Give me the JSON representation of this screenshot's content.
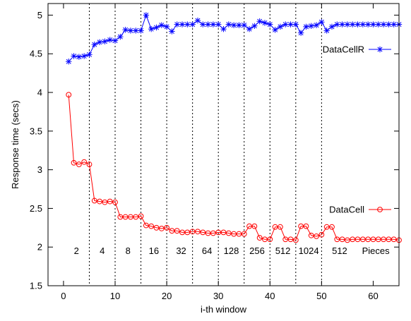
{
  "chart_data": {
    "type": "line",
    "title": "",
    "xlabel": "i-th window",
    "ylabel": "Response time (secs)",
    "xlim": [
      -3,
      65
    ],
    "ylim": [
      1.5,
      5.15
    ],
    "xticks": [
      0,
      10,
      20,
      30,
      40,
      50,
      60
    ],
    "yticks": [
      1.5,
      2,
      2.5,
      3,
      3.5,
      4,
      4.5,
      5
    ],
    "ytick_labels": [
      "1.5",
      "2",
      "2.5",
      "3",
      "3.5",
      "4",
      "4.5",
      "5"
    ],
    "grid": false,
    "legend": "right",
    "dividers_x": [
      5,
      10,
      15,
      20,
      25,
      30,
      35,
      40,
      45,
      50
    ],
    "annotations": [
      {
        "text": "2",
        "x": 2.5,
        "y": 1.95
      },
      {
        "text": "4",
        "x": 7.5,
        "y": 1.95
      },
      {
        "text": "8",
        "x": 12.5,
        "y": 1.95
      },
      {
        "text": "16",
        "x": 17.5,
        "y": 1.95
      },
      {
        "text": "32",
        "x": 22.8,
        "y": 1.95
      },
      {
        "text": "64",
        "x": 27.8,
        "y": 1.95
      },
      {
        "text": "128",
        "x": 32.5,
        "y": 1.95
      },
      {
        "text": "256",
        "x": 37.5,
        "y": 1.95
      },
      {
        "text": "512",
        "x": 42.5,
        "y": 1.95
      },
      {
        "text": "1024",
        "x": 47.5,
        "y": 1.95
      },
      {
        "text": "512",
        "x": 53.5,
        "y": 1.95
      },
      {
        "text": "Pieces",
        "x": 60.5,
        "y": 1.95
      }
    ],
    "series": [
      {
        "name": "DataCellR",
        "color": "#0000ff",
        "marker": "star",
        "x": [
          1,
          2,
          3,
          4,
          5,
          6,
          7,
          8,
          9,
          10,
          11,
          12,
          13,
          14,
          15,
          16,
          17,
          18,
          19,
          20,
          21,
          22,
          23,
          24,
          25,
          26,
          27,
          28,
          29,
          30,
          31,
          32,
          33,
          34,
          35,
          36,
          37,
          38,
          39,
          40,
          41,
          42,
          43,
          44,
          45,
          46,
          47,
          48,
          49,
          50,
          51,
          52,
          53,
          54,
          55,
          56,
          57,
          58,
          59,
          60,
          61,
          62,
          63,
          64,
          65
        ],
        "values": [
          4.4,
          4.47,
          4.46,
          4.47,
          4.49,
          4.62,
          4.65,
          4.66,
          4.68,
          4.67,
          4.72,
          4.81,
          4.8,
          4.8,
          4.8,
          5.0,
          4.82,
          4.84,
          4.87,
          4.85,
          4.79,
          4.88,
          4.88,
          4.88,
          4.88,
          4.93,
          4.88,
          4.88,
          4.88,
          4.88,
          4.82,
          4.88,
          4.87,
          4.87,
          4.87,
          4.82,
          4.86,
          4.92,
          4.9,
          4.88,
          4.81,
          4.85,
          4.88,
          4.88,
          4.88,
          4.77,
          4.85,
          4.86,
          4.87,
          4.91,
          4.8,
          4.85,
          4.88,
          4.88,
          4.88,
          4.88,
          4.88,
          4.88,
          4.88,
          4.88,
          4.88,
          4.88,
          4.88,
          4.88,
          4.88
        ]
      },
      {
        "name": "DataCell",
        "color": "#ff0000",
        "marker": "circle",
        "x": [
          1,
          2,
          3,
          4,
          5,
          6,
          7,
          8,
          9,
          10,
          11,
          12,
          13,
          14,
          15,
          16,
          17,
          18,
          19,
          20,
          21,
          22,
          23,
          24,
          25,
          26,
          27,
          28,
          29,
          30,
          31,
          32,
          33,
          34,
          35,
          36,
          37,
          38,
          39,
          40,
          41,
          42,
          43,
          44,
          45,
          46,
          47,
          48,
          49,
          50,
          51,
          52,
          53,
          54,
          55,
          56,
          57,
          58,
          59,
          60,
          61,
          62,
          63,
          64,
          65
        ],
        "values": [
          3.97,
          3.09,
          3.07,
          3.1,
          3.07,
          2.6,
          2.59,
          2.58,
          2.59,
          2.58,
          2.39,
          2.39,
          2.39,
          2.39,
          2.4,
          2.28,
          2.27,
          2.25,
          2.24,
          2.25,
          2.21,
          2.21,
          2.19,
          2.19,
          2.2,
          2.2,
          2.19,
          2.18,
          2.18,
          2.19,
          2.19,
          2.18,
          2.17,
          2.17,
          2.17,
          2.27,
          2.27,
          2.12,
          2.1,
          2.1,
          2.26,
          2.26,
          2.1,
          2.1,
          2.09,
          2.27,
          2.27,
          2.15,
          2.14,
          2.16,
          2.26,
          2.26,
          2.1,
          2.1,
          2.09,
          2.1,
          2.1,
          2.1,
          2.1,
          2.1,
          2.1,
          2.1,
          2.1,
          2.1,
          2.09
        ]
      }
    ]
  }
}
